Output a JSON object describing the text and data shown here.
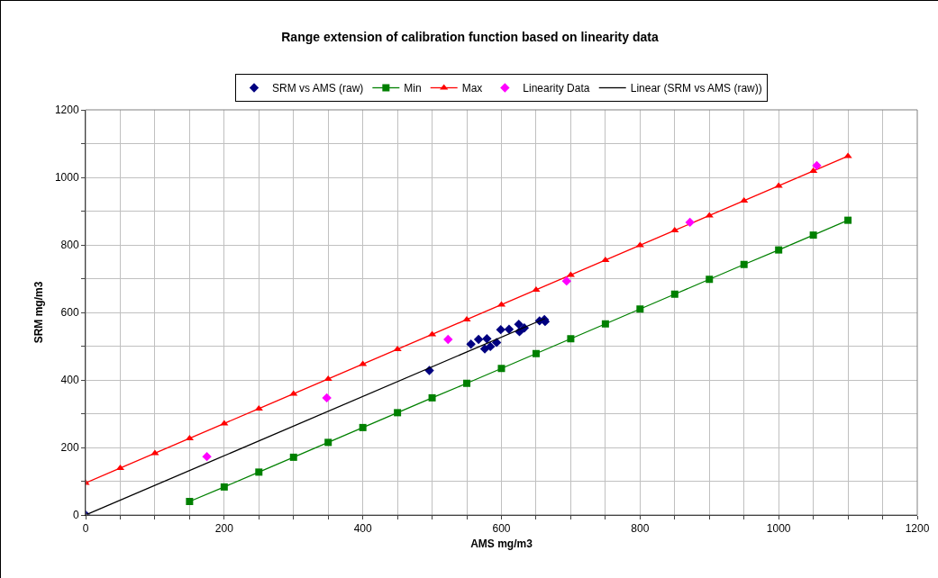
{
  "chart_data": {
    "type": "scatter",
    "title": "Range extension of calibration function based on linearity data",
    "xlabel": "AMS mg/m3",
    "ylabel": "SRM mg/m3",
    "xlim": [
      0,
      1200
    ],
    "ylim": [
      0,
      1200
    ],
    "xticks": [
      0,
      {
        "value": 50,
        "label": null
      },
      {
        "value": 100,
        "label": null
      },
      {
        "value": 150,
        "label": null
      },
      200,
      {
        "value": 250,
        "label": null
      },
      {
        "value": 300,
        "label": null
      },
      {
        "value": 350,
        "label": null
      },
      400,
      {
        "value": 450,
        "label": null
      },
      {
        "value": 500,
        "label": null
      },
      {
        "value": 550,
        "label": null
      },
      600,
      {
        "value": 650,
        "label": null
      },
      {
        "value": 700,
        "label": null
      },
      {
        "value": 750,
        "label": null
      },
      800,
      {
        "value": 850,
        "label": null
      },
      {
        "value": 900,
        "label": null
      },
      {
        "value": 950,
        "label": null
      },
      1000,
      {
        "value": 1050,
        "label": null
      },
      {
        "value": 1100,
        "label": null
      },
      {
        "value": 1150,
        "label": null
      },
      1200
    ],
    "yticks": [
      0,
      {
        "value": 100,
        "label": null
      },
      200,
      {
        "value": 300,
        "label": null
      },
      400,
      {
        "value": 500,
        "label": null
      },
      600,
      {
        "value": 700,
        "label": null
      },
      800,
      {
        "value": 900,
        "label": null
      },
      1000,
      {
        "value": 1100,
        "label": null
      },
      1200
    ],
    "grid": true,
    "legend": "top",
    "series": [
      {
        "name": "SRM vs AMS (raw)",
        "marker": "diamond",
        "color": "#000080",
        "x": [
          0,
          496,
          556,
          567,
          579,
          576,
          584,
          593,
          599,
          611,
          625,
          626,
          633,
          655,
          662,
          663
        ],
        "values": [
          0,
          428,
          506,
          520,
          522,
          492,
          499,
          511,
          549,
          550,
          565,
          543,
          554,
          575,
          579,
          573
        ]
      },
      {
        "name": "Min",
        "type": "line",
        "marker": "square",
        "color": "#008000",
        "x": [
          150,
          200,
          250,
          300,
          350,
          400,
          450,
          500,
          550,
          600,
          650,
          700,
          750,
          800,
          850,
          900,
          950,
          1000,
          1050,
          1100
        ],
        "values": [
          40,
          83,
          127,
          171,
          215,
          259,
          303,
          347,
          390,
          434,
          478,
          522,
          566,
          610,
          654,
          698,
          742,
          785,
          829,
          873
        ]
      },
      {
        "name": "Max",
        "type": "line",
        "marker": "triangle",
        "color": "#ff0000",
        "x": [
          0,
          50,
          100,
          150,
          200,
          250,
          300,
          350,
          400,
          450,
          500,
          550,
          600,
          650,
          700,
          750,
          800,
          850,
          900,
          950,
          1000,
          1050,
          1100
        ],
        "values": [
          95,
          139,
          183,
          227,
          271,
          315,
          359,
          403,
          447,
          491,
          535,
          579,
          623,
          667,
          711,
          755,
          799,
          843,
          887,
          931,
          975,
          1019,
          1063
        ]
      },
      {
        "name": "Linearity Data",
        "marker": "diamond",
        "color": "#ff00ff",
        "x": [
          175,
          348,
          523,
          694,
          872,
          1055
        ],
        "values": [
          173,
          347,
          520,
          693,
          867,
          1035
        ]
      },
      {
        "name": "Linear (SRM vs AMS (raw))",
        "type": "line",
        "marker": "none",
        "color": "#000000",
        "x": [
          0,
          663
        ],
        "values": [
          0,
          582
        ]
      }
    ]
  }
}
